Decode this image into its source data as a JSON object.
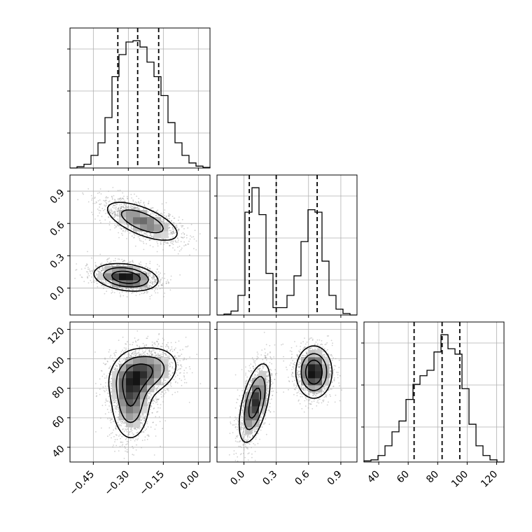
{
  "chart_data": {
    "type": "corner",
    "grid": true,
    "colors": {
      "line": "#000000",
      "grid": "#b0b0b0",
      "scatter": "#9a9a9a",
      "density_low": "#d9d9d9",
      "density_high": "#141414"
    },
    "parameters": [
      {
        "range": [
          -0.55,
          0.05
        ],
        "ticks": [
          -0.45,
          -0.3,
          -0.15,
          0.0
        ],
        "tick_labels": [
          "−0.45",
          "−0.30",
          "−0.15",
          "0.00"
        ],
        "quantiles": [
          -0.345,
          -0.26,
          -0.17
        ],
        "histogram": {
          "bins": [
            -0.55,
            -0.52,
            -0.49,
            -0.46,
            -0.43,
            -0.4,
            -0.37,
            -0.34,
            -0.31,
            -0.28,
            -0.25,
            -0.22,
            -0.19,
            -0.16,
            -0.13,
            -0.1,
            -0.07,
            -0.04,
            -0.01,
            0.02,
            0.05
          ],
          "counts": [
            0,
            2,
            6,
            20,
            40,
            80,
            145,
            180,
            200,
            202,
            192,
            168,
            145,
            115,
            72,
            40,
            20,
            8,
            3,
            1
          ]
        }
      },
      {
        "range": [
          -0.25,
          1.05
        ],
        "ticks": [
          0.0,
          0.3,
          0.6,
          0.9
        ],
        "tick_labels": [
          "0.0",
          "0.3",
          "0.6",
          "0.9"
        ],
        "quantiles": [
          0.05,
          0.3,
          0.68
        ],
        "histogram": {
          "bins": [
            -0.25,
            -0.185,
            -0.12,
            -0.055,
            0.01,
            0.075,
            0.14,
            0.205,
            0.27,
            0.335,
            0.4,
            0.465,
            0.53,
            0.595,
            0.66,
            0.725,
            0.79,
            0.855,
            0.92,
            0.985,
            1.05
          ],
          "counts": [
            0,
            2,
            8,
            40,
            210,
            260,
            205,
            85,
            15,
            15,
            40,
            80,
            150,
            215,
            210,
            110,
            40,
            12,
            3,
            0
          ]
        }
      },
      {
        "range": [
          30,
          125
        ],
        "ticks": [
          40,
          60,
          80,
          100,
          120
        ],
        "tick_labels": [
          "40",
          "60",
          "80",
          "100",
          "120"
        ],
        "quantiles": [
          64,
          83,
          95
        ],
        "histogram": {
          "bins": [
            30,
            34.75,
            39.5,
            44.25,
            49,
            53.75,
            58.5,
            63.25,
            68,
            72.75,
            77.5,
            82.25,
            87,
            91.75,
            96.5,
            101.25,
            106,
            110.75,
            115.5,
            120.25,
            125
          ],
          "counts": [
            1,
            2,
            6,
            15,
            28,
            38,
            58,
            72,
            80,
            85,
            102,
            118,
            105,
            100,
            68,
            35,
            15,
            6,
            2,
            0
          ]
        }
      }
    ],
    "pairs": [
      {
        "row": 1,
        "col": 0,
        "clusters": [
          {
            "center": [
              -0.24,
              0.62
            ],
            "sd": [
              0.085,
              0.1
            ],
            "corr": -0.65,
            "weight": 0.5
          },
          {
            "center": [
              -0.31,
              0.1
            ],
            "sd": [
              0.07,
              0.065
            ],
            "corr": -0.25,
            "weight": 0.5
          }
        ]
      },
      {
        "row": 2,
        "col": 0,
        "clusters": [
          {
            "center": [
              -0.29,
              73
            ],
            "sd": [
              0.045,
              15
            ],
            "corr": 0.0,
            "weight": 0.5
          },
          {
            "center": [
              -0.23,
              91
            ],
            "sd": [
              0.075,
              9
            ],
            "corr": 0.25,
            "weight": 0.5
          }
        ]
      },
      {
        "row": 2,
        "col": 1,
        "clusters": [
          {
            "center": [
              0.1,
              70
            ],
            "sd": [
              0.075,
              14
            ],
            "corr": 0.55,
            "weight": 0.5
          },
          {
            "center": [
              0.65,
              91
            ],
            "sd": [
              0.085,
              9
            ],
            "corr": 0.0,
            "weight": 0.5
          }
        ]
      }
    ]
  }
}
